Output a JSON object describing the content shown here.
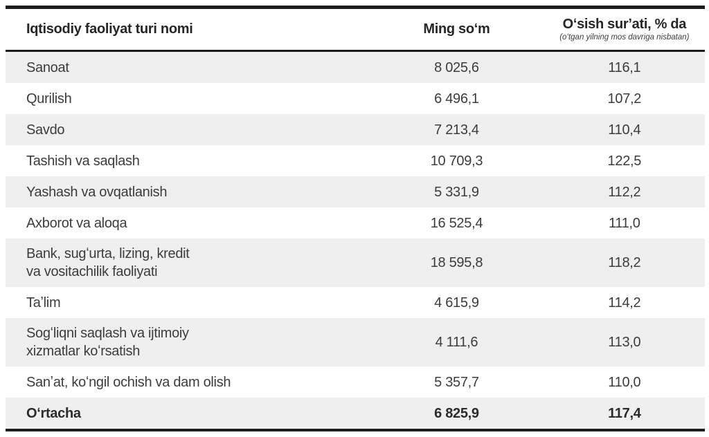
{
  "table": {
    "columns": [
      {
        "label": "Iqtisodiy faoliyat turi nomi"
      },
      {
        "label": "Ming soʻm"
      },
      {
        "label": "Oʻsish surʼati, % da",
        "sublabel": "(oʻtgan yilning mos davriga nisbatan)"
      }
    ],
    "rows": [
      {
        "name": "Sanoat",
        "amount": "8 025,6",
        "growth": "116,1"
      },
      {
        "name": "Qurilish",
        "amount": "6 496,1",
        "growth": "107,2"
      },
      {
        "name": "Savdo",
        "amount": "7 213,4",
        "growth": "110,4"
      },
      {
        "name": "Tashish va saqlash",
        "amount": "10 709,3",
        "growth": "122,5"
      },
      {
        "name": "Yashash va ovqatlanish",
        "amount": "5 331,9",
        "growth": "112,2"
      },
      {
        "name": "Axborot va aloqa",
        "amount": "16 525,4",
        "growth": "111,0"
      },
      {
        "name": "Bank, sugʻurta, lizing, kredit\nva vositachilik faoliyati",
        "amount": "18 595,8",
        "growth": "118,2"
      },
      {
        "name": "Taʼlim",
        "amount": "4 615,9",
        "growth": "114,2"
      },
      {
        "name": "Sogʻliqni saqlash va ijtimoiy\nxizmatlar koʻrsatish",
        "amount": "4 111,6",
        "growth": "113,0"
      },
      {
        "name": "Sanʼat, koʻngil ochish va dam olish",
        "amount": "5 357,7",
        "growth": "110,0"
      },
      {
        "name": "Oʻrtacha",
        "amount": "6 825,9",
        "growth": "117,4"
      }
    ],
    "colors": {
      "row_alt_bg": "#efefef",
      "border": "#1c1c1c",
      "text": "#3c3c3c"
    }
  }
}
